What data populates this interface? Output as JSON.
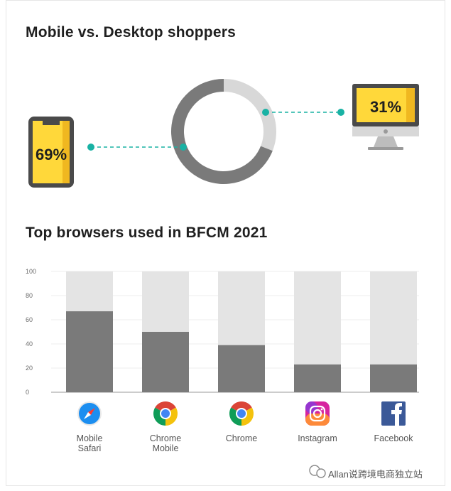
{
  "section1": {
    "title": "Mobile vs. Desktop shoppers",
    "mobile_label": "69%",
    "desktop_label": "31%"
  },
  "section2": {
    "title": "Top browsers used in BFCM 2021"
  },
  "footer": {
    "text": "Allan说跨境电商独立站"
  },
  "colors": {
    "dark_gray": "#7a7a7a",
    "light_gray": "#d8d8d8",
    "bar_track": "#e4e4e4",
    "accent_yellow": "#ffd83a",
    "device_dark": "#4a4a4a",
    "teal": "#19b2a4"
  },
  "chart_data": [
    {
      "type": "pie",
      "labels": [
        "Mobile",
        "Desktop"
      ],
      "values": [
        69,
        31
      ]
    },
    {
      "type": "bar",
      "categories": [
        "Mobile Safari",
        "Chrome Mobile",
        "Chrome",
        "Instagram",
        "Facebook"
      ],
      "category_lines": [
        [
          "Mobile",
          "Safari"
        ],
        [
          "Chrome",
          "Mobile"
        ],
        [
          "Chrome"
        ],
        [
          "Instagram"
        ],
        [
          "Facebook"
        ]
      ],
      "icons": [
        "safari-icon",
        "chrome-icon",
        "chrome-icon",
        "instagram-icon",
        "facebook-icon"
      ],
      "values": [
        67,
        50,
        39,
        23,
        23
      ],
      "ylim": [
        0,
        100
      ],
      "yticks": [
        0,
        20,
        40,
        60,
        80,
        100
      ],
      "grid": true
    }
  ]
}
